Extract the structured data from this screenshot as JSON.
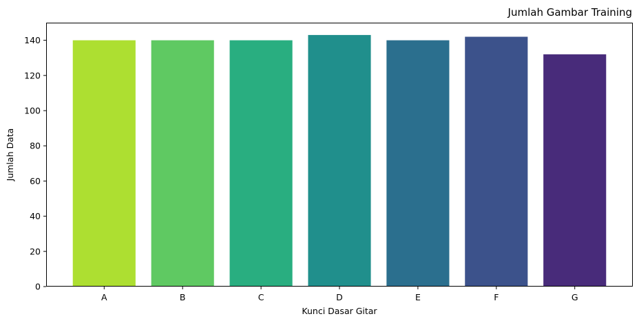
{
  "chart_data": {
    "type": "bar",
    "title": "Jumlah Gambar Training",
    "title_align": "right",
    "xlabel": "Kunci Dasar Gitar",
    "ylabel": "Jumlah Data",
    "categories": [
      "A",
      "B",
      "C",
      "D",
      "E",
      "F",
      "G"
    ],
    "values": [
      140,
      140,
      140,
      143,
      140,
      142,
      132
    ],
    "colors": [
      "#addf31",
      "#5fc962",
      "#29ae80",
      "#208f8c",
      "#2b6f8e",
      "#3c528b",
      "#482b7a"
    ],
    "ylim": [
      0,
      150
    ],
    "yticks": [
      0,
      20,
      40,
      60,
      80,
      100,
      120,
      140
    ],
    "grid": false,
    "legend": "none"
  }
}
